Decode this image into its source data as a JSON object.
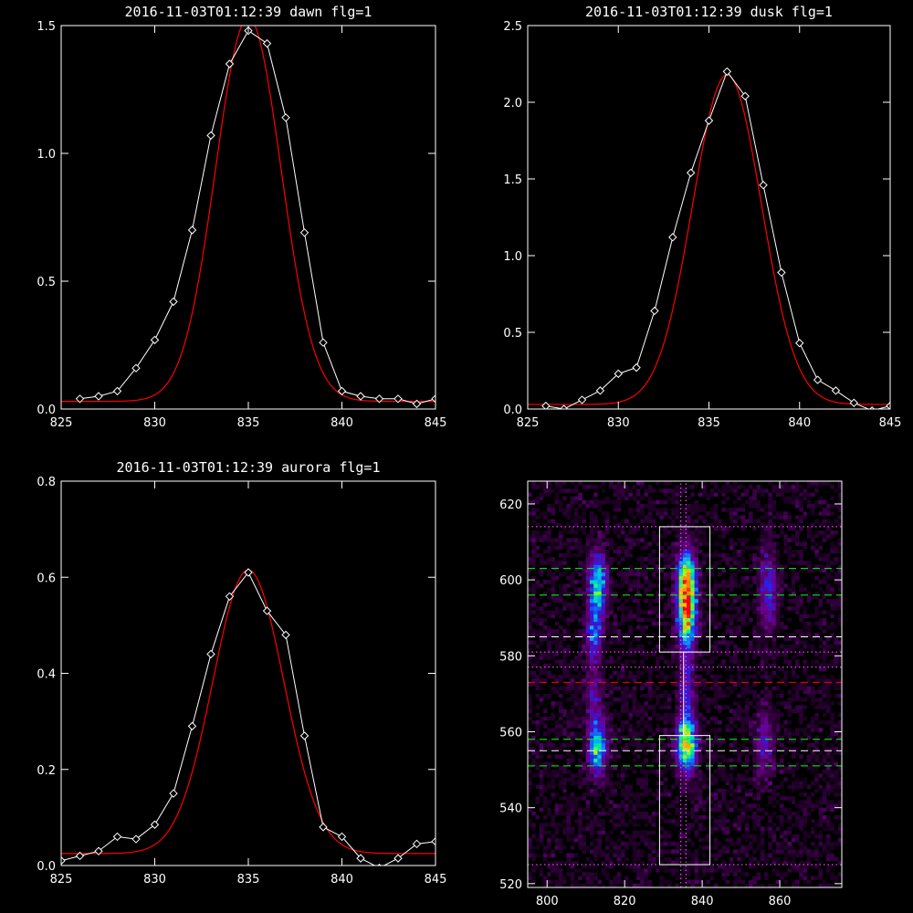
{
  "chart_data": [
    {
      "type": "line",
      "title": "2016-11-03T01:12:39 dawn flg=1",
      "xlim": [
        825,
        845
      ],
      "ylim": [
        0,
        1.5
      ],
      "xticks": [
        825,
        830,
        835,
        840,
        845
      ],
      "yticks": [
        0.0,
        0.5,
        1.0,
        1.5
      ],
      "xtick_labels": [
        "825",
        "830",
        "835",
        "840",
        "845"
      ],
      "ytick_labels": [
        "0.0",
        "0.5",
        "1.0",
        "1.5"
      ],
      "series": [
        {
          "kind": "observed",
          "color": "#ffffff",
          "marker": "diamond",
          "x": [
            826,
            827,
            828,
            829,
            830,
            831,
            832,
            833,
            834,
            835,
            836,
            837,
            838,
            839,
            840,
            841,
            842,
            843,
            844,
            845
          ],
          "y": [
            0.04,
            0.05,
            0.07,
            0.16,
            0.27,
            0.42,
            0.7,
            1.07,
            1.35,
            1.48,
            1.43,
            1.14,
            0.69,
            0.26,
            0.07,
            0.05,
            0.04,
            0.04,
            0.02,
            0.04
          ]
        },
        {
          "kind": "fit",
          "color": "#ff0000",
          "gaussian": {
            "amplitude": 1.5,
            "center": 835.0,
            "sigma": 1.75,
            "baseline": 0.03
          }
        }
      ]
    },
    {
      "type": "line",
      "title": "2016-11-03T01:12:39 dusk flg=1",
      "xlim": [
        825,
        845
      ],
      "ylim": [
        0,
        2.5
      ],
      "xticks": [
        825,
        830,
        835,
        840,
        845
      ],
      "yticks": [
        0.0,
        0.5,
        1.0,
        1.5,
        2.0,
        2.5
      ],
      "xtick_labels": [
        "825",
        "830",
        "835",
        "840",
        "845"
      ],
      "ytick_labels": [
        "0.0",
        "0.5",
        "1.0",
        "1.5",
        "2.0",
        "2.5"
      ],
      "series": [
        {
          "kind": "observed",
          "color": "#ffffff",
          "marker": "diamond",
          "x": [
            826,
            827,
            828,
            829,
            830,
            831,
            832,
            833,
            834,
            835,
            836,
            837,
            838,
            839,
            840,
            841,
            842,
            843,
            844,
            845
          ],
          "y": [
            0.02,
            0.0,
            0.06,
            0.12,
            0.23,
            0.27,
            0.64,
            1.12,
            1.54,
            1.88,
            2.2,
            2.04,
            1.46,
            0.89,
            0.43,
            0.19,
            0.12,
            0.04,
            -0.01,
            0.02
          ]
        },
        {
          "kind": "fit",
          "color": "#ff0000",
          "gaussian": {
            "amplitude": 2.15,
            "center": 836.0,
            "sigma": 1.9,
            "baseline": 0.03
          }
        }
      ]
    },
    {
      "type": "line",
      "title": "2016-11-03T01:12:39 aurora flg=1",
      "xlim": [
        825,
        845
      ],
      "ylim": [
        0,
        0.8
      ],
      "xticks": [
        825,
        830,
        835,
        840,
        845
      ],
      "yticks": [
        0.0,
        0.2,
        0.4,
        0.6,
        0.8
      ],
      "xtick_labels": [
        "825",
        "830",
        "835",
        "840",
        "845"
      ],
      "ytick_labels": [
        "0.0",
        "0.2",
        "0.4",
        "0.6",
        "0.8"
      ],
      "series": [
        {
          "kind": "observed",
          "color": "#ffffff",
          "marker": "diamond",
          "x": [
            825,
            826,
            827,
            828,
            829,
            830,
            831,
            832,
            833,
            834,
            835,
            836,
            837,
            838,
            839,
            840,
            841,
            842,
            843,
            844,
            845
          ],
          "y": [
            0.01,
            0.02,
            0.03,
            0.06,
            0.055,
            0.085,
            0.15,
            0.29,
            0.44,
            0.56,
            0.61,
            0.53,
            0.48,
            0.27,
            0.08,
            0.06,
            0.015,
            -0.005,
            0.015,
            0.045,
            0.05
          ]
        },
        {
          "kind": "fit",
          "color": "#ff0000",
          "gaussian": {
            "amplitude": 0.59,
            "center": 835.0,
            "sigma": 1.9,
            "baseline": 0.025
          }
        }
      ]
    },
    {
      "type": "heatmap",
      "title": "",
      "xlim": [
        795,
        876
      ],
      "ylim": [
        519,
        626
      ],
      "xticks": [
        800,
        820,
        840,
        860
      ],
      "yticks": [
        520,
        540,
        560,
        580,
        600,
        620
      ],
      "xtick_labels": [
        "800",
        "820",
        "840",
        "860"
      ],
      "ytick_labels": [
        "520",
        "540",
        "560",
        "580",
        "600",
        "620"
      ],
      "colormap": "rainbow",
      "blobs": [
        {
          "x": 813,
          "y": 598,
          "sx": 1.6,
          "sy": 6,
          "amp": 0.55
        },
        {
          "x": 812,
          "y": 585,
          "sx": 1.4,
          "sy": 4,
          "amp": 0.3
        },
        {
          "x": 813,
          "y": 556,
          "sx": 1.6,
          "sy": 5,
          "amp": 0.5
        },
        {
          "x": 812,
          "y": 570,
          "sx": 1.4,
          "sy": 6,
          "amp": 0.18
        },
        {
          "x": 836,
          "y": 598,
          "sx": 1.6,
          "sy": 6,
          "amp": 0.95
        },
        {
          "x": 836,
          "y": 588,
          "sx": 1.5,
          "sy": 5,
          "amp": 0.5
        },
        {
          "x": 836,
          "y": 557,
          "sx": 1.7,
          "sy": 5,
          "amp": 0.72
        },
        {
          "x": 836,
          "y": 571,
          "sx": 1.3,
          "sy": 6,
          "amp": 0.25
        },
        {
          "x": 857,
          "y": 597,
          "sx": 1.6,
          "sy": 7,
          "amp": 0.28
        },
        {
          "x": 856,
          "y": 557,
          "sx": 1.6,
          "sy": 6,
          "amp": 0.22
        }
      ],
      "boxes": [
        {
          "x0": 829,
          "x1": 842,
          "y0": 581,
          "y1": 614
        },
        {
          "x0": 829,
          "x1": 842,
          "y0": 525,
          "y1": 559
        }
      ],
      "hlines": [
        {
          "y": 614,
          "color": "#ff66ff",
          "dash": "dot"
        },
        {
          "y": 603,
          "color": "#00ff00",
          "dash": "dash"
        },
        {
          "y": 596,
          "color": "#00ff00",
          "dash": "dash"
        },
        {
          "y": 585,
          "color": "#ffffff",
          "dash": "dash"
        },
        {
          "y": 581,
          "color": "#ff66ff",
          "dash": "dot"
        },
        {
          "y": 577,
          "color": "#ff66ff",
          "dash": "dot"
        },
        {
          "y": 573,
          "color": "#ff0000",
          "dash": "dash"
        },
        {
          "y": 558,
          "color": "#00ff00",
          "dash": "dash"
        },
        {
          "y": 555,
          "color": "#ffffff",
          "dash": "dash"
        },
        {
          "y": 551,
          "color": "#00ff00",
          "dash": "dash"
        },
        {
          "y": 525,
          "color": "#ff66ff",
          "dash": "dot"
        }
      ],
      "vlines": [
        {
          "x": 834.5,
          "color": "#ff66ff",
          "dash": "dot"
        },
        {
          "x": 835.2,
          "color": "#ffffff",
          "dash": "solid",
          "y0": 559,
          "y1": 581
        },
        {
          "x": 835.8,
          "color": "#ff66ff",
          "dash": "dot"
        }
      ]
    }
  ]
}
